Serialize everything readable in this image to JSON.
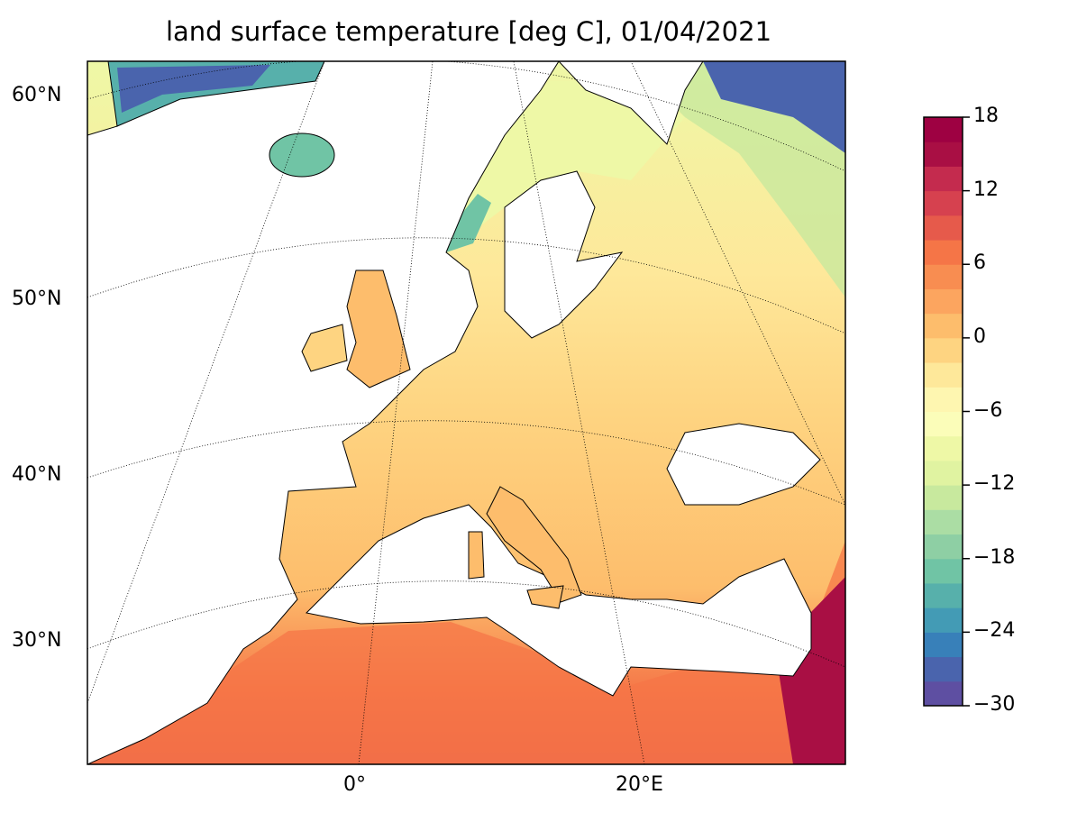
{
  "title": "land surface temperature [deg C], 01/04/2021",
  "lat_labels": [
    "60°N",
    "50°N",
    "40°N",
    "30°N"
  ],
  "lon_labels": [
    "0°",
    "20°E"
  ],
  "colorbar": {
    "min": -30,
    "max": 18,
    "step": 2,
    "ticks": [
      "18",
      "12",
      "6",
      "0",
      "−6",
      "−12",
      "−18",
      "−24",
      "−30"
    ],
    "colors": [
      "#5e4fa2",
      "#4a64ad",
      "#3880b9",
      "#439bb5",
      "#57b0ab",
      "#70c4a5",
      "#8ecfa4",
      "#abdda4",
      "#c8e99e",
      "#e0f3a1",
      "#eef8a6",
      "#fbfdb9",
      "#fef6b0",
      "#fee89a",
      "#fed481",
      "#fdbd6c",
      "#fca55f",
      "#f88d51",
      "#f57547",
      "#e65a4b",
      "#d6414f",
      "#c42b4e",
      "#a90f44",
      "#9e0142"
    ]
  },
  "colormap": "Spectral_r"
}
